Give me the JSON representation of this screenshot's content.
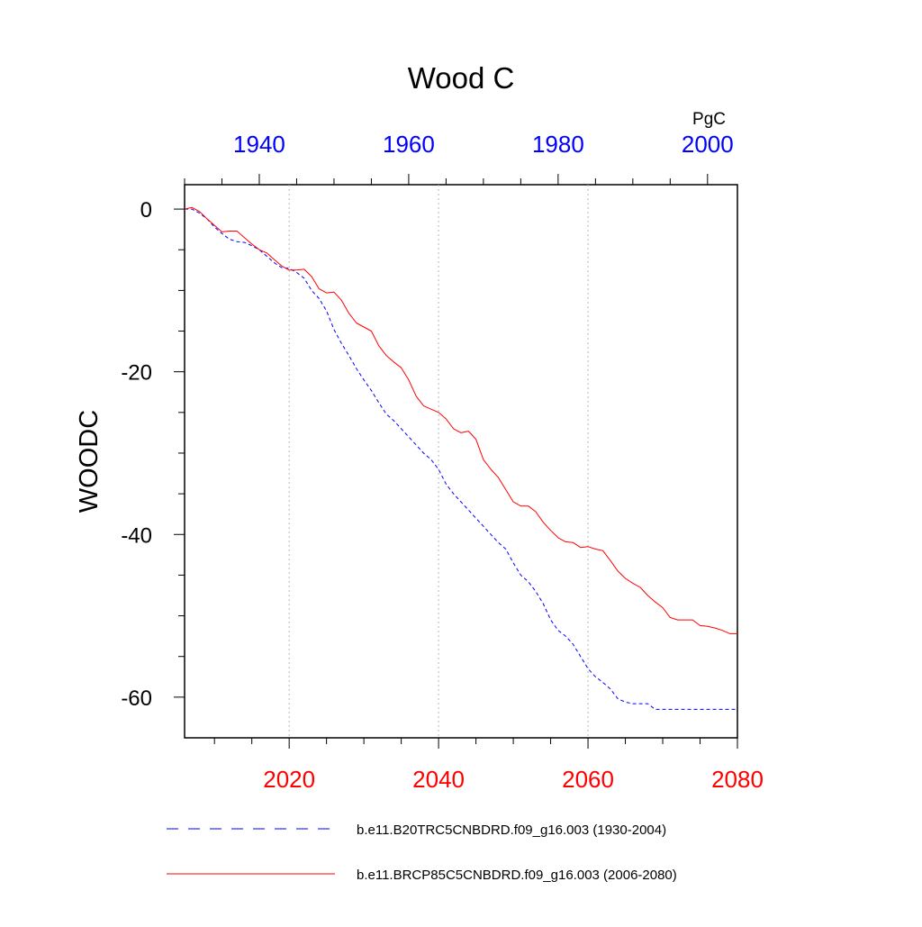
{
  "chart_data": {
    "type": "line",
    "title": "Wood C",
    "units": "PgC",
    "ylabel": "WOODC",
    "ylim": [
      -65,
      3
    ],
    "yticks": [
      0,
      -20,
      -40,
      -60
    ],
    "bottom_axis": {
      "range": [
        2006,
        2080
      ],
      "ticks": [
        2020,
        2040,
        2060,
        2080
      ],
      "tick_color": "#ff0000"
    },
    "top_axis": {
      "range": [
        1930,
        2004
      ],
      "ticks": [
        1940,
        1960,
        1980,
        2000
      ],
      "tick_color": "#0000ff"
    },
    "grid": "vertical dotted lines at bottom-axis ticks",
    "legend_position": "bottom",
    "series": [
      {
        "name": "b.e11.B20TRC5CNBDRD.f09_g16.003 (1930-2004)",
        "color": "#0000ff",
        "dash": "dashed",
        "axis": "top",
        "x": [
          1930,
          1931,
          1932,
          1933,
          1934,
          1935,
          1936,
          1937,
          1938,
          1939,
          1940,
          1941,
          1942,
          1943,
          1944,
          1945,
          1946,
          1947,
          1948,
          1949,
          1950,
          1951,
          1952,
          1953,
          1954,
          1955,
          1956,
          1957,
          1958,
          1959,
          1960,
          1961,
          1962,
          1963,
          1964,
          1965,
          1966,
          1967,
          1968,
          1969,
          1970,
          1971,
          1972,
          1973,
          1974,
          1975,
          1976,
          1977,
          1978,
          1979,
          1980,
          1981,
          1982,
          1983,
          1984,
          1985,
          1986,
          1987,
          1988,
          1989,
          1990,
          1991,
          1992,
          1993,
          1994,
          1995,
          1996,
          1997,
          1998,
          1999,
          2000,
          2001,
          2002,
          2003,
          2004
        ],
        "y": [
          0.0,
          0.0,
          -0.5,
          -1.2,
          -2.2,
          -3.0,
          -3.7,
          -4.0,
          -4.1,
          -4.5,
          -5.0,
          -5.8,
          -6.6,
          -7.2,
          -7.3,
          -7.8,
          -8.5,
          -10.0,
          -11.0,
          -12.5,
          -14.8,
          -16.5,
          -18.0,
          -19.6,
          -21.0,
          -22.3,
          -23.8,
          -25.2,
          -26.0,
          -27.0,
          -28.0,
          -29.0,
          -30.0,
          -30.8,
          -32.0,
          -33.8,
          -35.0,
          -36.0,
          -37.0,
          -38.0,
          -39.0,
          -40.0,
          -41.0,
          -41.8,
          -43.5,
          -45.0,
          -45.8,
          -47.0,
          -48.5,
          -50.5,
          -51.8,
          -52.5,
          -53.5,
          -55.0,
          -56.5,
          -57.5,
          -58.2,
          -59.0,
          -60.2,
          -60.6,
          -60.8,
          -60.8,
          -60.8,
          -61.5,
          -61.5,
          -61.5,
          -61.5,
          -61.5,
          -61.5,
          -61.5,
          -61.5,
          -61.5,
          -61.5,
          -61.5,
          -61.5
        ]
      },
      {
        "name": "b.e11.BRCP85C5CNBDRD.f09_g16.003 (2006-2080)",
        "color": "#ff0000",
        "dash": "solid",
        "axis": "bottom",
        "x": [
          2006,
          2007,
          2008,
          2009,
          2010,
          2011,
          2012,
          2013,
          2014,
          2015,
          2016,
          2017,
          2018,
          2019,
          2020,
          2021,
          2022,
          2023,
          2024,
          2025,
          2026,
          2027,
          2028,
          2029,
          2030,
          2031,
          2032,
          2033,
          2034,
          2035,
          2036,
          2037,
          2038,
          2039,
          2040,
          2041,
          2042,
          2043,
          2044,
          2045,
          2046,
          2047,
          2048,
          2049,
          2050,
          2051,
          2052,
          2053,
          2054,
          2055,
          2056,
          2057,
          2058,
          2059,
          2060,
          2061,
          2062,
          2063,
          2064,
          2065,
          2066,
          2067,
          2068,
          2069,
          2070,
          2071,
          2072,
          2073,
          2074,
          2075,
          2076,
          2077,
          2078,
          2079,
          2080
        ],
        "y": [
          0.0,
          0.2,
          -0.3,
          -1.2,
          -2.0,
          -2.8,
          -2.7,
          -2.7,
          -3.5,
          -4.3,
          -5.0,
          -5.4,
          -6.2,
          -7.0,
          -7.5,
          -7.5,
          -7.4,
          -8.3,
          -9.8,
          -10.3,
          -10.2,
          -11.2,
          -12.8,
          -14.0,
          -14.5,
          -15.0,
          -16.8,
          -18.0,
          -18.8,
          -19.5,
          -21.0,
          -23.0,
          -24.2,
          -24.6,
          -25.0,
          -25.8,
          -27.0,
          -27.5,
          -27.3,
          -28.3,
          -30.8,
          -32.0,
          -33.0,
          -34.5,
          -36.0,
          -36.5,
          -36.5,
          -37.2,
          -38.5,
          -39.5,
          -40.4,
          -40.9,
          -41.0,
          -41.6,
          -41.5,
          -41.8,
          -42.0,
          -43.2,
          -44.5,
          -45.4,
          -46.0,
          -46.5,
          -47.5,
          -48.3,
          -49.0,
          -50.2,
          -50.5,
          -50.5,
          -50.5,
          -51.2,
          -51.3,
          -51.5,
          -51.8,
          -52.2,
          -52.2
        ]
      }
    ]
  }
}
